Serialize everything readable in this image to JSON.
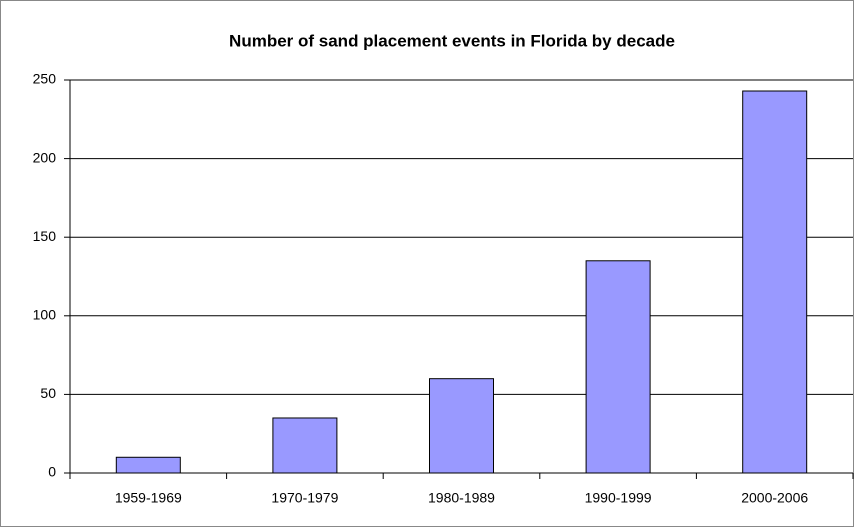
{
  "chart_data": {
    "type": "bar",
    "title": "Number of sand placement events in Florida by decade",
    "categories": [
      "1959-1969",
      "1970-1979",
      "1980-1989",
      "1990-1999",
      "2000-2006"
    ],
    "values": [
      10,
      35,
      60,
      135,
      243
    ],
    "color": "#9999ff",
    "ylim": [
      0,
      250
    ],
    "yticks": [
      0,
      50,
      100,
      150,
      200,
      250
    ],
    "grid": true
  }
}
